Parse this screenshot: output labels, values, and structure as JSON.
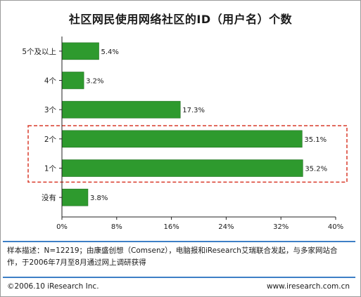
{
  "title": "社区网民使用网络社区的ID（用户名）个数",
  "chart_data": {
    "type": "bar",
    "orientation": "horizontal",
    "categories": [
      "5个及以上",
      "4个",
      "3个",
      "2个",
      "1个",
      "没有"
    ],
    "values": [
      5.4,
      3.2,
      17.3,
      35.1,
      35.2,
      3.8
    ],
    "value_labels": [
      "5.4%",
      "3.2%",
      "17.3%",
      "35.1%",
      "35.2%",
      "3.8%"
    ],
    "xlim": [
      0,
      40
    ],
    "x_ticks": [
      "0%",
      "8%",
      "16%",
      "24%",
      "32%",
      "40%"
    ],
    "highlighted_categories": [
      "2个",
      "1个"
    ],
    "grid": false,
    "bar_color": "#2e9a2e",
    "highlight_color": "#d93a2a"
  },
  "note": "样本描述：N=12219；由康盛创想（Comsenz），电脑报和iResearch艾瑞联合发起，与多家网站合作，于2006年7月至8月通过网上调研获得",
  "copyright": "©2006.10 iResearch Inc.",
  "website": "www.iresearch.com.cn"
}
